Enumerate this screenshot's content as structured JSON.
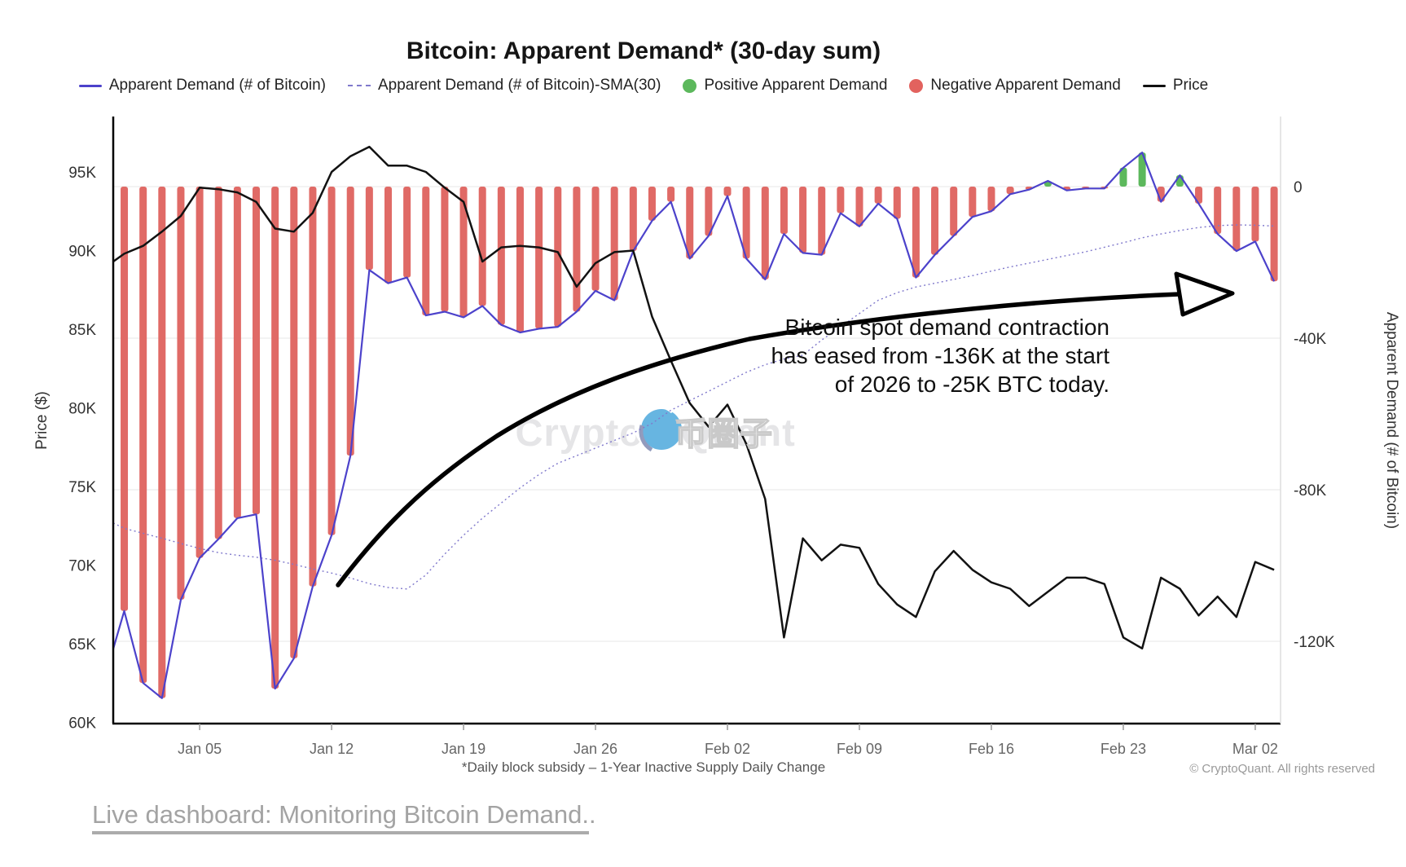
{
  "title": "Bitcoin: Apparent Demand* (30-day sum)",
  "legend": [
    {
      "label": "Apparent Demand (# of Bitcoin)",
      "swatch": "line",
      "color": "#4c42cb"
    },
    {
      "label": "Apparent Demand (# of Bitcoin)-SMA(30)",
      "swatch": "dash",
      "color": "#8079cc"
    },
    {
      "label": "Positive Apparent Demand",
      "swatch": "dot",
      "color": "#5cb85c"
    },
    {
      "label": "Negative Apparent Demand",
      "swatch": "dot",
      "color": "#e2625e"
    },
    {
      "label": "Price",
      "swatch": "line",
      "color": "#111111"
    }
  ],
  "annotation": {
    "lines": [
      "Bitcoin spot  demand contraction",
      "has eased from -136K at the start",
      "of 2026 to -25K BTC today."
    ]
  },
  "watermark": {
    "left": "Crypto",
    "right": "Quant",
    "overlay": "币圈子"
  },
  "footnote": "*Daily block subsidy – 1-Year Inactive Supply Daily Change",
  "copyright": "© CryptoQuant. All rights reserved",
  "link": {
    "text": "Live dashboard: Monitoring Bitcoin Demand.",
    "suffix": "."
  },
  "chart_data": {
    "type": "line",
    "title": "Bitcoin: Apparent Demand* (30-day sum)",
    "price_axis": {
      "label": "Price ($)",
      "ticks": [
        "95K",
        "90K",
        "85K",
        "80K",
        "75K",
        "70K",
        "65K",
        "60K"
      ],
      "min": 59000,
      "max": 99000
    },
    "demand_axis": {
      "label": "Apparent Demand (# of Bitcoin)",
      "ticks": [
        "0",
        "-40K",
        "-80K",
        "-120K"
      ],
      "min": -141000,
      "max": 18000
    },
    "x_ticks": {
      "labels": [
        "Jan 05",
        "Jan 12",
        "Jan 19",
        "Jan 26",
        "Feb 02",
        "Feb 09",
        "Feb 16",
        "Feb 23",
        "Mar 02"
      ],
      "indices": [
        5,
        12,
        19,
        26,
        33,
        40,
        47,
        54,
        61
      ]
    },
    "x_dates": [
      "Dec 31",
      "Jan 01",
      "Jan 02",
      "Jan 03",
      "Jan 04",
      "Jan 05",
      "Jan 06",
      "Jan 07",
      "Jan 08",
      "Jan 09",
      "Jan 10",
      "Jan 11",
      "Jan 12",
      "Jan 13",
      "Jan 14",
      "Jan 15",
      "Jan 16",
      "Jan 17",
      "Jan 18",
      "Jan 19",
      "Jan 20",
      "Jan 21",
      "Jan 22",
      "Jan 23",
      "Jan 24",
      "Jan 25",
      "Jan 26",
      "Jan 27",
      "Jan 28",
      "Jan 29",
      "Jan 30",
      "Jan 31",
      "Feb 01",
      "Feb 02",
      "Feb 03",
      "Feb 04",
      "Feb 05",
      "Feb 06",
      "Feb 07",
      "Feb 08",
      "Feb 09",
      "Feb 10",
      "Feb 11",
      "Feb 12",
      "Feb 13",
      "Feb 14",
      "Feb 15",
      "Feb 16",
      "Feb 17",
      "Feb 18",
      "Feb 19",
      "Feb 20",
      "Feb 21",
      "Feb 22",
      "Feb 23",
      "Feb 24",
      "Feb 25",
      "Feb 26",
      "Feb 27",
      "Feb 28",
      "Mar 01",
      "Mar 02",
      "Mar 03"
    ],
    "series": [
      {
        "name": "Price",
        "axis": "price",
        "unit": "K USD",
        "values": [
          89.3,
          89.8,
          90.3,
          91.2,
          92.2,
          94.0,
          93.9,
          93.7,
          93.1,
          91.4,
          91.2,
          92.4,
          95.0,
          96.0,
          96.6,
          95.4,
          95.4,
          95.0,
          94.0,
          93.1,
          89.3,
          90.2,
          90.3,
          90.2,
          89.9,
          87.7,
          89.2,
          89.9,
          90.0,
          85.8,
          83.0,
          80.3,
          78.8,
          80.2,
          77.7,
          74.2,
          65.4,
          71.7,
          70.3,
          71.3,
          71.1,
          68.8,
          67.5,
          66.7,
          69.6,
          70.9,
          69.7,
          68.9,
          68.5,
          67.4,
          68.3,
          69.2,
          69.2,
          68.8,
          65.4,
          64.7,
          69.2,
          68.5,
          66.8,
          68.0,
          66.7,
          70.2,
          69.7
        ]
      },
      {
        "name": "Apparent Demand (# of Bitcoin)",
        "axis": "demand",
        "unit": "K BTC",
        "values": [
          -122,
          -112,
          -131,
          -135,
          -109,
          -98,
          -93,
          -87.5,
          -86.5,
          -132.5,
          -124.5,
          -105.5,
          -92,
          -71,
          -22,
          -25.5,
          -24,
          -34,
          -33,
          -34.5,
          -31.5,
          -36.5,
          -38.5,
          -37.5,
          -37,
          -33,
          -27.5,
          -30,
          -17,
          -9,
          -4,
          -19,
          -13,
          -2.5,
          -19,
          -24.5,
          -12.5,
          -17.5,
          -18,
          -7,
          -10.5,
          -4.5,
          -8.5,
          -24,
          -18,
          -13,
          -8,
          -6.5,
          -2,
          -0.8,
          1.5,
          -1,
          -0.5,
          -0.5,
          5,
          9,
          -4,
          3,
          -4.5,
          -12.5,
          -17,
          -14.5,
          -25
        ]
      },
      {
        "name": "Apparent Demand (# of Bitcoin)-SMA(30)",
        "axis": "demand",
        "unit": "K BTC",
        "values": [
          -88.8,
          -90.2,
          -91.5,
          -92.8,
          -94.2,
          -95.5,
          -96.6,
          -97.3,
          -97.8,
          -98.6,
          -99.7,
          -100.9,
          -102.0,
          -103.3,
          -104.8,
          -105.8,
          -106.2,
          -102.5,
          -97.0,
          -92.0,
          -87.5,
          -83.5,
          -79.5,
          -76.0,
          -73.0,
          -71.0,
          -69.0,
          -67.0,
          -65.0,
          -62.5,
          -59.0,
          -56.5,
          -54.0,
          -51.5,
          -49.0,
          -47.0,
          -45.5,
          -44.5,
          -40.5,
          -37.0,
          -33.5,
          -30.0,
          -28.0,
          -26.5,
          -25.5,
          -24.5,
          -23.5,
          -22.3,
          -21.2,
          -20.2,
          -19.2,
          -18.2,
          -17.2,
          -16.0,
          -14.8,
          -13.5,
          -12.5,
          -11.6,
          -10.8,
          -10.3,
          -10.1,
          -10.2,
          -10.4
        ]
      }
    ],
    "bars": {
      "source": "Apparent Demand (# of Bitcoin)",
      "positive_color": "#5cb85c",
      "negative_color": "#e06a66"
    },
    "grid": "horizontal-faint",
    "legend_position": "top"
  }
}
